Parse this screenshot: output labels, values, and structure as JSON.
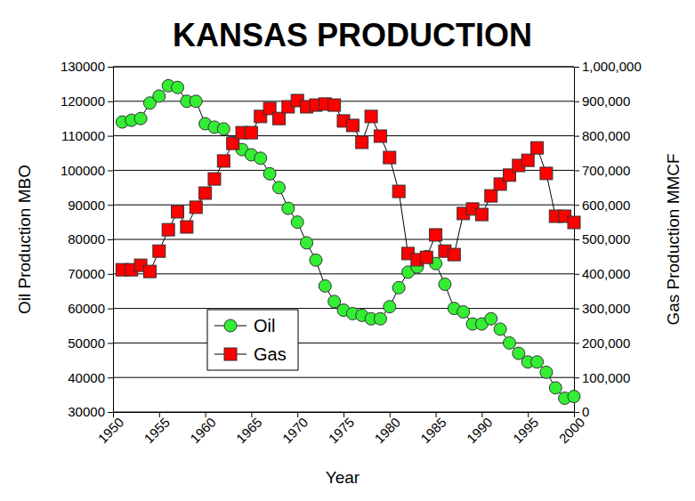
{
  "chart_data": {
    "type": "line",
    "title": "KANSAS PRODUCTION",
    "x_label": "Year",
    "y_label": "Oil Production MBO",
    "y2_label": "Gas Production MMCF",
    "x": [
      1951,
      1952,
      1953,
      1954,
      1955,
      1956,
      1957,
      1958,
      1959,
      1960,
      1961,
      1962,
      1963,
      1964,
      1965,
      1966,
      1967,
      1968,
      1969,
      1970,
      1971,
      1972,
      1973,
      1974,
      1975,
      1976,
      1977,
      1978,
      1979,
      1980,
      1981,
      1982,
      1983,
      1984,
      1985,
      1986,
      1987,
      1988,
      1989,
      1990,
      1991,
      1992,
      1993,
      1994,
      1995,
      1996,
      1997,
      1998,
      1999,
      2000
    ],
    "xlim": [
      1950,
      2000
    ],
    "xticks": [
      1950,
      1955,
      1960,
      1965,
      1970,
      1975,
      1980,
      1985,
      1990,
      1995,
      2000
    ],
    "ylim": [
      30000,
      130000
    ],
    "yticks": [
      30000,
      40000,
      50000,
      60000,
      70000,
      80000,
      90000,
      100000,
      110000,
      120000,
      130000
    ],
    "y2lim": [
      0,
      1000000
    ],
    "y2ticks": [
      {
        "value": 0,
        "label": "0"
      },
      {
        "value": 100000,
        "label": "100,000"
      },
      {
        "value": 200000,
        "label": "200,000"
      },
      {
        "value": 300000,
        "label": "300,000"
      },
      {
        "value": 400000,
        "label": "400,000"
      },
      {
        "value": 500000,
        "label": "500,000"
      },
      {
        "value": 600000,
        "label": "600,000"
      },
      {
        "value": 700000,
        "label": "700,000"
      },
      {
        "value": 800000,
        "label": "800,000"
      },
      {
        "value": 900000,
        "label": "900,000"
      },
      {
        "value": 1000000,
        "label": "1,000,000"
      }
    ],
    "grid": true,
    "series": [
      {
        "name": "Oil",
        "color": "#33ee33",
        "marker": "circle",
        "line_style": "solid",
        "values": [
          114000,
          114500,
          115000,
          119500,
          121500,
          124500,
          124000,
          120000,
          120000,
          113500,
          112500,
          112000,
          108000,
          106000,
          104500,
          103500,
          99000,
          95000,
          89000,
          85000,
          79000,
          74000,
          66500,
          62000,
          59500,
          58500,
          58000,
          57000,
          57000,
          60500,
          66000,
          70500,
          72000,
          75000,
          73000,
          67000,
          60000,
          59000,
          55500,
          55500,
          57000,
          54000,
          50000,
          47000,
          44500,
          44500,
          41500,
          37000,
          34000,
          34500
        ]
      },
      {
        "name": "Gas",
        "color": "#ff0000",
        "marker": "square",
        "line_style": "solid",
        "axis": "y2",
        "values": [
          412000,
          412000,
          425000,
          407000,
          466000,
          528000,
          580000,
          536000,
          593000,
          634000,
          675000,
          727000,
          778000,
          809000,
          809000,
          856000,
          879000,
          850000,
          884000,
          902000,
          884000,
          889000,
          892000,
          889000,
          843000,
          830000,
          781000,
          856000,
          799000,
          737000,
          639000,
          459000,
          441000,
          448000,
          513000,
          466000,
          456000,
          575000,
          588000,
          572000,
          626000,
          660000,
          686000,
          714000,
          729000,
          765000,
          691000,
          567000,
          567000,
          549000
        ]
      }
    ]
  }
}
